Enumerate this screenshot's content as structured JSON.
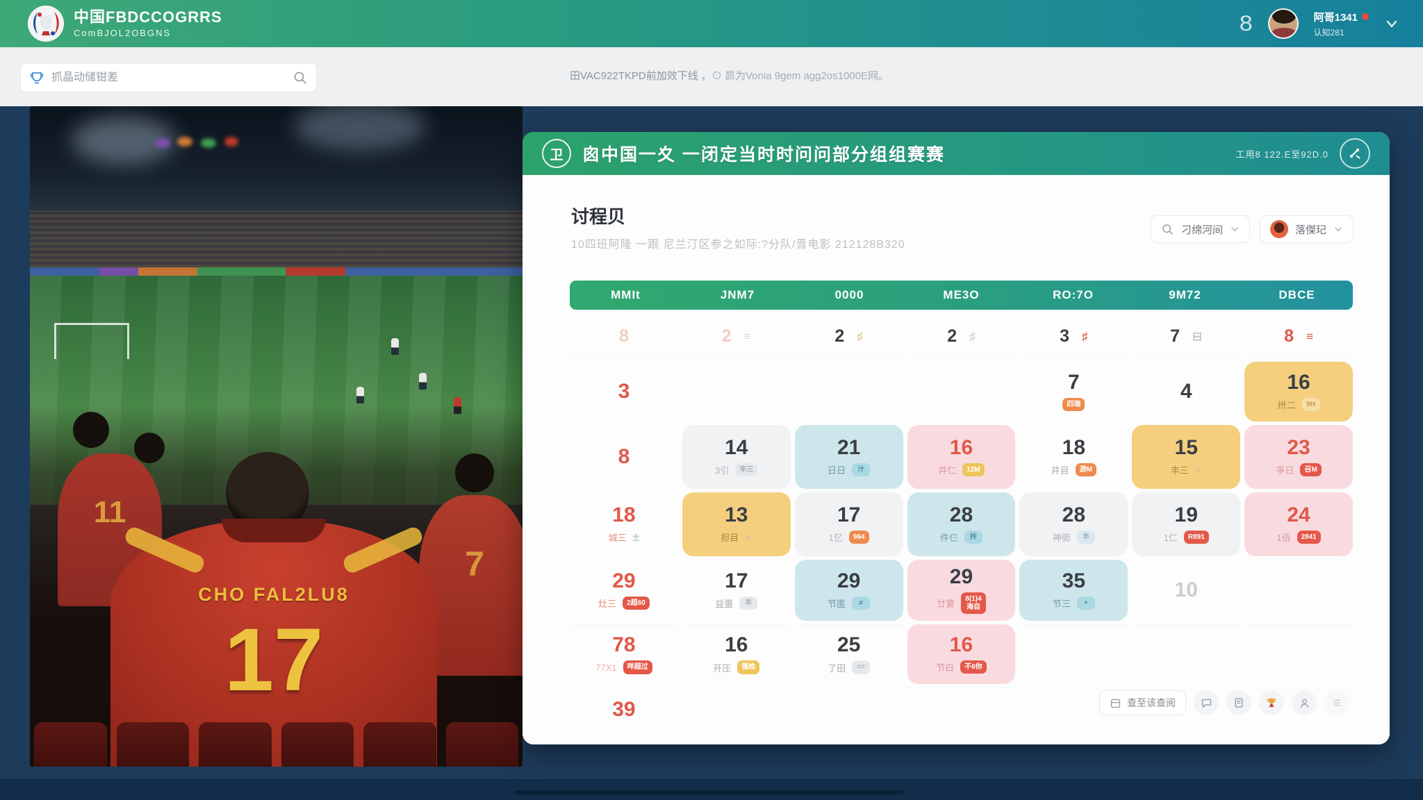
{
  "topbar": {
    "logo_title": "中国FBDCCOGRRS",
    "logo_subtitle": "ComBJOL2OBGNS",
    "notification_glyph": "8",
    "user_name": "阿哥1341",
    "user_subtitle": "认知281"
  },
  "searchbar": {
    "placeholder": "抓晶动储钳差",
    "notice_a": "田VAC922TKPD前加效下线 ，",
    "notice_b": "⊙ 昴为Vonia 9gem agg2os1000E网。"
  },
  "hero": {
    "jersey_name": "CHO FAL2LU8",
    "jersey_number": "17",
    "jersey_number_left": "11",
    "jersey_number_right": "7"
  },
  "panel": {
    "badge_glyph": "卫",
    "title": "囪中国一夊 一闭定当时时问问部分组组赛赛",
    "header_right": "工用8 122.E至92D.0",
    "section_title": "讨程贝",
    "section_subtitle": "10四班阿隆 一跟 尼兰汀区参之如际:?分队/晋电影 212128B320",
    "filter_time": "刁绵河间",
    "filter_user": "落傑玘",
    "weekdays": [
      "MMIt",
      "JNM7",
      "0000",
      "ME3O",
      "RO:7O",
      "9M72",
      "DBCE"
    ],
    "footer_button": "查至该查阅",
    "footer_icons": [
      "chat",
      "document",
      "trophy",
      "person",
      "list"
    ]
  },
  "calendar": {
    "rows": [
      [
        {
          "n": "8",
          "nc": "faded"
        },
        {
          "n": "2",
          "nc": "faded",
          "icon": "≡",
          "ic": "faded"
        },
        {
          "n": "2",
          "nc": "dark",
          "icon": "♯",
          "ic": "tan"
        },
        {
          "n": "2",
          "nc": "dark",
          "icon": "♯",
          "ic": "grey"
        },
        {
          "n": "3",
          "nc": "dark",
          "icon": "♯",
          "ic": "red"
        },
        {
          "n": "7",
          "nc": "dark",
          "icon": "⊟",
          "ic": "grey"
        },
        {
          "n": "8",
          "nc": "red",
          "icon": "≡",
          "ic": "red"
        }
      ],
      [
        {
          "n": "3",
          "nc": "red"
        },
        {},
        {},
        {},
        {
          "n": "7",
          "nc": "dark",
          "badge": "四瑞",
          "bc": "orange"
        },
        {
          "n": "4",
          "nc": "dark"
        },
        {
          "n": "16",
          "nc": "dark",
          "card": "yellow",
          "sub": "卅二",
          "badge": "9H",
          "bc": "paleyellow"
        }
      ],
      [
        {
          "n": "8",
          "nc": "red"
        },
        {
          "n": "14",
          "nc": "dark",
          "card": "grey",
          "sub": "3引",
          "badge": "丰三",
          "bc": "palegrey"
        },
        {
          "n": "21",
          "nc": "dark",
          "card": "blue",
          "sub": "日日",
          "badge": "汁",
          "bc": "cyan"
        },
        {
          "n": "16",
          "nc": "red",
          "card": "pink",
          "sub": "井仁",
          "badge": "12M",
          "bc": "yellow"
        },
        {
          "n": "18",
          "nc": "dark",
          "sub": "并目",
          "badge": "游M",
          "bc": "orange"
        },
        {
          "n": "15",
          "nc": "dark",
          "card": "yellow",
          "sub": "丰三",
          "icon": "+",
          "ic": "tan"
        },
        {
          "n": "23",
          "nc": "red",
          "card": "pink",
          "sub": "爭日",
          "badge": "召M",
          "bc": "red"
        }
      ],
      [
        {
          "n": "18",
          "nc": "red",
          "sub": "城三",
          "sc": "red",
          "icon": "±",
          "ic": "grey"
        },
        {
          "n": "13",
          "nc": "dark",
          "card": "yellow",
          "sub": "担目",
          "icon": "+",
          "ic": "tan"
        },
        {
          "n": "17",
          "nc": "dark",
          "card": "grey",
          "sub": "1忆",
          "badge": "964",
          "bc": "orange"
        },
        {
          "n": "28",
          "nc": "dark",
          "card": "blue",
          "sub": "件仨",
          "badge": "拎",
          "bc": "cyan"
        },
        {
          "n": "28",
          "nc": "dark",
          "card": "grey",
          "sub": "神衠",
          "badge": "丰",
          "bc": "paleblue"
        },
        {
          "n": "19",
          "nc": "dark",
          "card": "grey",
          "sub": "1仁",
          "badge": "R891",
          "bc": "red"
        },
        {
          "n": "24",
          "nc": "red",
          "card": "pink",
          "sub": "1佰",
          "badge": "2841",
          "bc": "red"
        }
      ],
      [
        {
          "n": "29",
          "nc": "red",
          "sub": "灶三",
          "sc": "red",
          "badge": "2超60",
          "bc": "red"
        },
        {
          "n": "17",
          "nc": "dark",
          "sub": "益噩",
          "badge": "丰",
          "bc": "palegrey"
        },
        {
          "n": "29",
          "nc": "dark",
          "card": "blue",
          "sub": "节匿",
          "badge": "≠",
          "bc": "cyan"
        },
        {
          "n": "29",
          "nc": "dark",
          "card": "pink",
          "sub": "廿賨",
          "badge": "8(1)4\n海自",
          "bc": "red"
        },
        {
          "n": "35",
          "nc": "dark",
          "card": "blue",
          "sub": "节三",
          "badge": "+",
          "bc": "cyan"
        },
        {
          "n": "10",
          "nc": "grey"
        },
        {}
      ],
      [
        {
          "n": "78",
          "nc": "red",
          "sub": "77X1",
          "sc": "pink",
          "badge": "咩超过",
          "bc": "red"
        },
        {
          "n": "16",
          "nc": "dark",
          "sub": "开压",
          "badge": "强检",
          "bc": "yellow"
        },
        {
          "n": "25",
          "nc": "dark",
          "sub": "了田",
          "badge": "==",
          "bc": "palegrey"
        },
        {
          "n": "16",
          "nc": "red",
          "card": "pink",
          "sub": "节白",
          "badge": "不6你",
          "bc": "red"
        },
        {},
        {},
        {}
      ],
      [
        {
          "n": "39",
          "nc": "red"
        },
        {},
        {},
        {},
        {},
        {},
        {}
      ]
    ]
  }
}
